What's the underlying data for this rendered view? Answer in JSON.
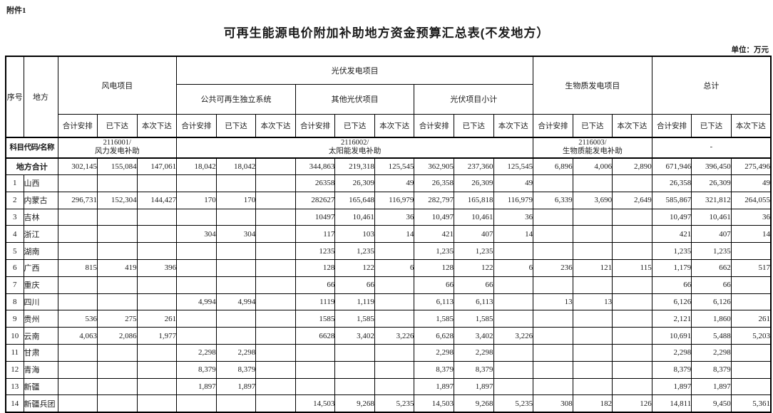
{
  "attachment_label": "附件1",
  "title": "可再生能源电价附加补助地方资金预算汇总表(不发地方）",
  "unit_label": "单位：万元",
  "table": {
    "col_headers": {
      "seq": "序号",
      "region": "地方",
      "wind": "风电项目",
      "pv": "光伏发电项目",
      "pv_public": "公共可再生独立系统",
      "pv_other": "其他光伏项目",
      "pv_subtotal": "光伏项目小计",
      "biomass": "生物质发电项目",
      "total": "总计",
      "sub": [
        "合计安排",
        "已下达",
        "本次下达"
      ]
    },
    "subject_code_row": {
      "label": "科目代码/名称",
      "wind_code": "2116001/\n风力发电补助",
      "pv_code": "2116002/\n太阳能发电补助",
      "biomass_code": "2116003/\n生物质能发电补助",
      "total_code": "-"
    },
    "total_row": {
      "label": "地方合计",
      "values": [
        "302,145",
        "155,084",
        "147,061",
        "18,042",
        "18,042",
        "",
        "344,863",
        "219,318",
        "125,545",
        "362,905",
        "237,360",
        "125,545",
        "6,896",
        "4,006",
        "2,890",
        "671,946",
        "396,450",
        "275,496"
      ]
    },
    "rows": [
      {
        "seq": "1",
        "region": "山西",
        "values": [
          "",
          "",
          "",
          "",
          "",
          "",
          "26358",
          "26,309",
          "49",
          "26,358",
          "26,309",
          "49",
          "",
          "",
          "",
          "26,358",
          "26,309",
          "49"
        ]
      },
      {
        "seq": "2",
        "region": "内蒙古",
        "values": [
          "296,731",
          "152,304",
          "144,427",
          "170",
          "170",
          "",
          "282627",
          "165,648",
          "116,979",
          "282,797",
          "165,818",
          "116,979",
          "6,339",
          "3,690",
          "2,649",
          "585,867",
          "321,812",
          "264,055"
        ]
      },
      {
        "seq": "3",
        "region": "吉林",
        "values": [
          "",
          "",
          "",
          "",
          "",
          "",
          "10497",
          "10,461",
          "36",
          "10,497",
          "10,461",
          "36",
          "",
          "",
          "",
          "10,497",
          "10,461",
          "36"
        ]
      },
      {
        "seq": "4",
        "region": "浙江",
        "values": [
          "",
          "",
          "",
          "304",
          "304",
          "",
          "117",
          "103",
          "14",
          "421",
          "407",
          "14",
          "",
          "",
          "",
          "421",
          "407",
          "14"
        ]
      },
      {
        "seq": "5",
        "region": "湖南",
        "values": [
          "",
          "",
          "",
          "",
          "",
          "",
          "1235",
          "1,235",
          "",
          "1,235",
          "1,235",
          "",
          "",
          "",
          "",
          "1,235",
          "1,235",
          ""
        ]
      },
      {
        "seq": "6",
        "region": "广西",
        "values": [
          "815",
          "419",
          "396",
          "",
          "",
          "",
          "128",
          "122",
          "6",
          "128",
          "122",
          "6",
          "236",
          "121",
          "115",
          "1,179",
          "662",
          "517"
        ]
      },
      {
        "seq": "7",
        "region": "重庆",
        "values": [
          "",
          "",
          "",
          "",
          "",
          "",
          "66",
          "66",
          "",
          "66",
          "66",
          "",
          "",
          "",
          "",
          "66",
          "66",
          ""
        ]
      },
      {
        "seq": "8",
        "region": "四川",
        "values": [
          "",
          "",
          "",
          "4,994",
          "4,994",
          "",
          "1119",
          "1,119",
          "",
          "6,113",
          "6,113",
          "",
          "13",
          "13",
          "",
          "6,126",
          "6,126",
          ""
        ]
      },
      {
        "seq": "9",
        "region": "贵州",
        "values": [
          "536",
          "275",
          "261",
          "",
          "",
          "",
          "1585",
          "1,585",
          "",
          "1,585",
          "1,585",
          "",
          "",
          "",
          "",
          "2,121",
          "1,860",
          "261"
        ]
      },
      {
        "seq": "10",
        "region": "云南",
        "values": [
          "4,063",
          "2,086",
          "1,977",
          "",
          "",
          "",
          "6628",
          "3,402",
          "3,226",
          "6,628",
          "3,402",
          "3,226",
          "",
          "",
          "",
          "10,691",
          "5,488",
          "5,203"
        ]
      },
      {
        "seq": "11",
        "region": "甘肃",
        "values": [
          "",
          "",
          "",
          "2,298",
          "2,298",
          "",
          "",
          "",
          "",
          "2,298",
          "2,298",
          "",
          "",
          "",
          "",
          "2,298",
          "2,298",
          ""
        ]
      },
      {
        "seq": "12",
        "region": "青海",
        "values": [
          "",
          "",
          "",
          "8,379",
          "8,379",
          "",
          "",
          "",
          "",
          "8,379",
          "8,379",
          "",
          "",
          "",
          "",
          "8,379",
          "8,379",
          ""
        ]
      },
      {
        "seq": "13",
        "region": "新疆",
        "values": [
          "",
          "",
          "",
          "1,897",
          "1,897",
          "",
          "",
          "",
          "",
          "1,897",
          "1,897",
          "",
          "",
          "",
          "",
          "1,897",
          "1,897",
          ""
        ]
      },
      {
        "seq": "14",
        "region": "新疆兵团",
        "values": [
          "",
          "",
          "",
          "",
          "",
          "",
          "14,503",
          "9,268",
          "5,235",
          "14,503",
          "9,268",
          "5,235",
          "308",
          "182",
          "126",
          "14,811",
          "9,450",
          "5,361"
        ]
      }
    ]
  }
}
